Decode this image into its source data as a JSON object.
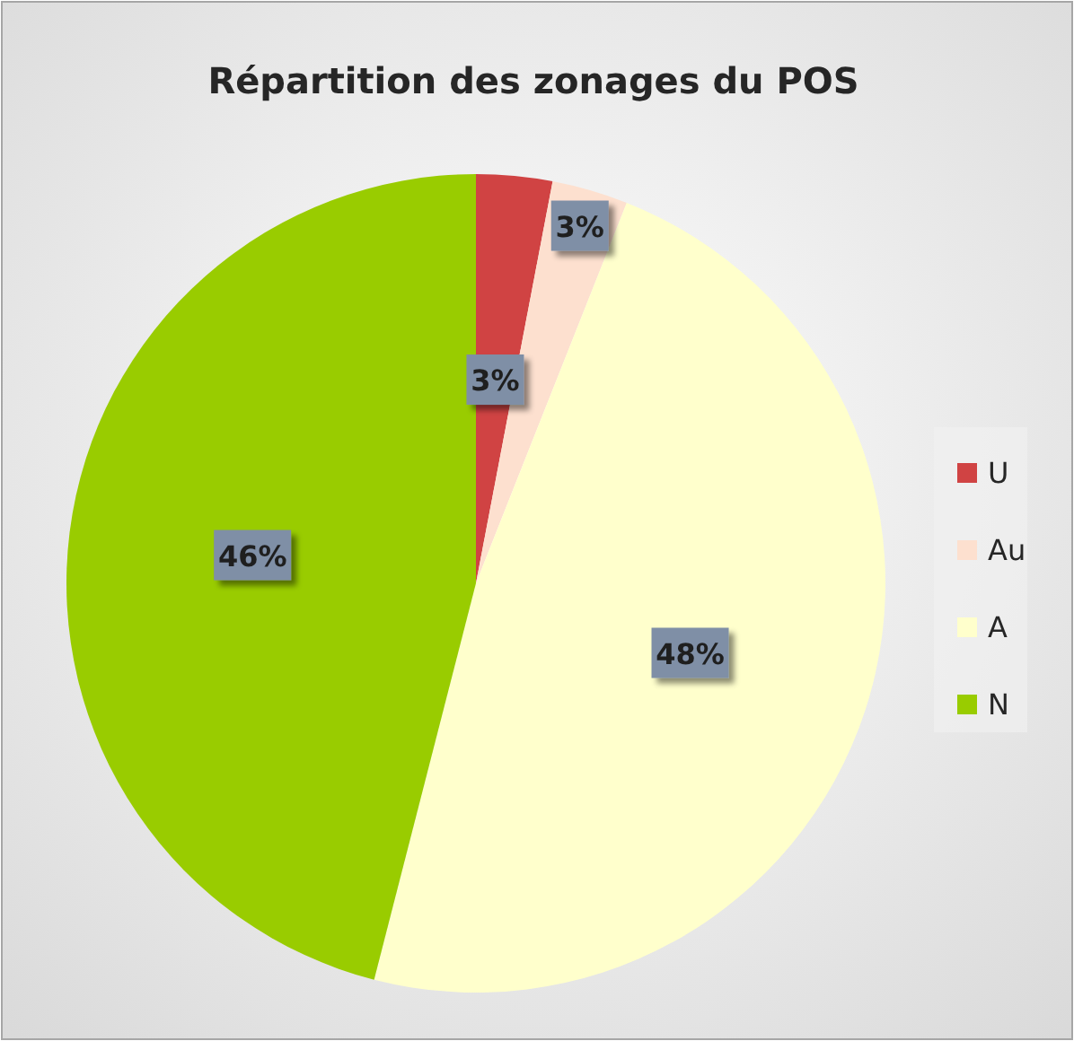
{
  "chart_data": {
    "type": "pie",
    "title": "Répartition des zonages du POS",
    "categories": [
      "U",
      "Au",
      "A",
      "N"
    ],
    "values": [
      3,
      3,
      48,
      46
    ],
    "colors": [
      "#d04343",
      "#fde0cf",
      "#ffffcc",
      "#99cc00"
    ],
    "value_labels": [
      "3%",
      "3%",
      "48%",
      "46%"
    ],
    "legend": "right"
  }
}
